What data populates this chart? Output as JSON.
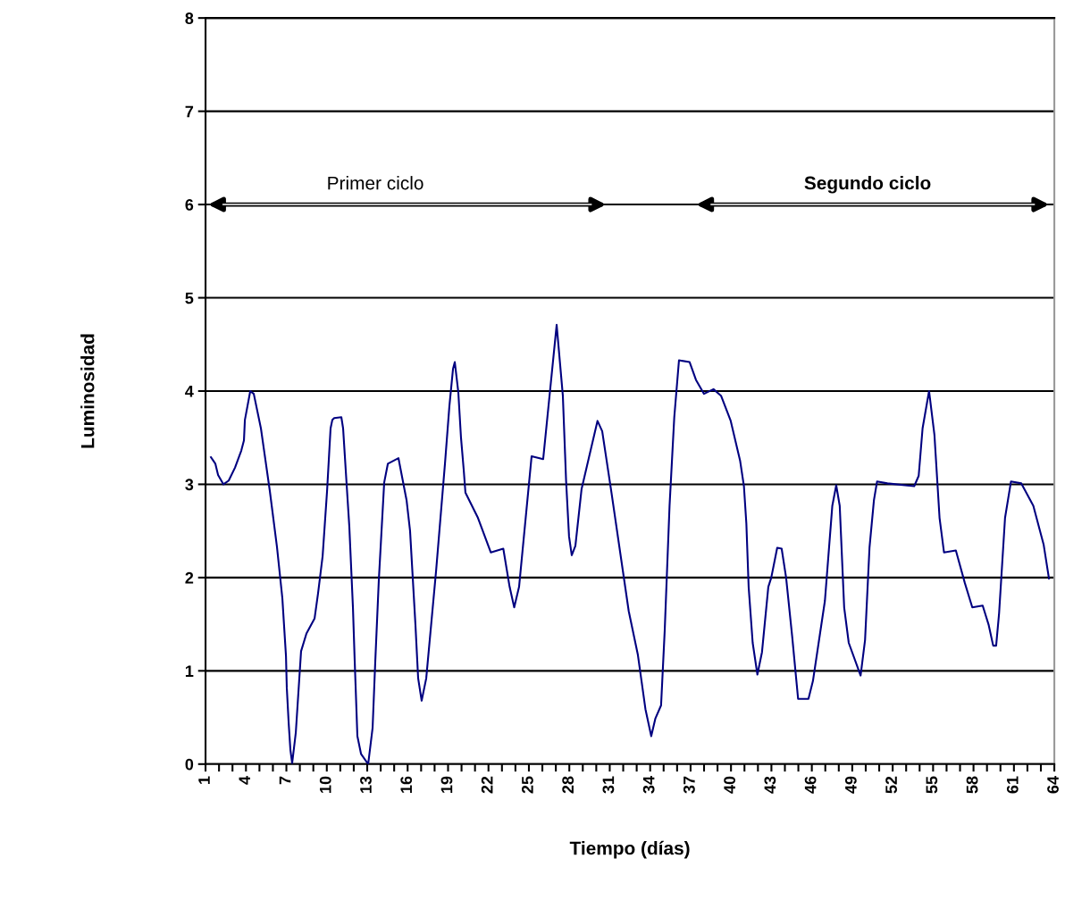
{
  "chart_data": {
    "type": "line",
    "xlabel": "Tiempo (días)",
    "ylabel": "Luminosidad",
    "xlim": [
      1,
      64
    ],
    "xticks": [
      {
        "value": 1,
        "label": "1"
      },
      {
        "value": 2,
        "label": null
      },
      {
        "value": 3,
        "label": null
      },
      {
        "value": 4,
        "label": "4"
      },
      {
        "value": 5,
        "label": null
      },
      {
        "value": 6,
        "label": null
      },
      {
        "value": 7,
        "label": "7"
      },
      {
        "value": 8,
        "label": null
      },
      {
        "value": 9,
        "label": null
      },
      {
        "value": 10,
        "label": "10"
      },
      {
        "value": 11,
        "label": null
      },
      {
        "value": 12,
        "label": null
      },
      {
        "value": 13,
        "label": "13"
      },
      {
        "value": 14,
        "label": null
      },
      {
        "value": 15,
        "label": null
      },
      {
        "value": 16,
        "label": "16"
      },
      {
        "value": 17,
        "label": null
      },
      {
        "value": 18,
        "label": null
      },
      {
        "value": 19,
        "label": "19"
      },
      {
        "value": 20,
        "label": null
      },
      {
        "value": 21,
        "label": null
      },
      {
        "value": 22,
        "label": "22"
      },
      {
        "value": 23,
        "label": null
      },
      {
        "value": 24,
        "label": null
      },
      {
        "value": 25,
        "label": "25"
      },
      {
        "value": 26,
        "label": null
      },
      {
        "value": 27,
        "label": null
      },
      {
        "value": 28,
        "label": "28"
      },
      {
        "value": 29,
        "label": null
      },
      {
        "value": 30,
        "label": null
      },
      {
        "value": 31,
        "label": "31"
      },
      {
        "value": 32,
        "label": null
      },
      {
        "value": 33,
        "label": null
      },
      {
        "value": 34,
        "label": "34"
      },
      {
        "value": 35,
        "label": null
      },
      {
        "value": 36,
        "label": null
      },
      {
        "value": 37,
        "label": "37"
      },
      {
        "value": 38,
        "label": null
      },
      {
        "value": 39,
        "label": null
      },
      {
        "value": 40,
        "label": "40"
      },
      {
        "value": 41,
        "label": null
      },
      {
        "value": 42,
        "label": null
      },
      {
        "value": 43,
        "label": "43"
      },
      {
        "value": 44,
        "label": null
      },
      {
        "value": 45,
        "label": null
      },
      {
        "value": 46,
        "label": "46"
      },
      {
        "value": 47,
        "label": null
      },
      {
        "value": 48,
        "label": null
      },
      {
        "value": 49,
        "label": "49"
      },
      {
        "value": 50,
        "label": null
      },
      {
        "value": 51,
        "label": null
      },
      {
        "value": 52,
        "label": "52"
      },
      {
        "value": 53,
        "label": null
      },
      {
        "value": 54,
        "label": null
      },
      {
        "value": 55,
        "label": "55"
      },
      {
        "value": 56,
        "label": null
      },
      {
        "value": 57,
        "label": null
      },
      {
        "value": 58,
        "label": "58"
      },
      {
        "value": 59,
        "label": null
      },
      {
        "value": 60,
        "label": null
      },
      {
        "value": 61,
        "label": "61"
      },
      {
        "value": 62,
        "label": null
      },
      {
        "value": 63,
        "label": null
      },
      {
        "value": 64,
        "label": "64"
      }
    ],
    "ylim": [
      0,
      8
    ],
    "yticks": [
      0,
      1,
      2,
      3,
      4,
      5,
      6,
      7,
      8
    ],
    "grid": "y",
    "marker": "none",
    "line_style": "solid",
    "series": [
      {
        "color": "#000080",
        "x": [
          1.4,
          1.73,
          1.93,
          2.33,
          2.72,
          3.19,
          3.65,
          3.85,
          3.92,
          4.32,
          4.58,
          5.11,
          5.77,
          6.3,
          6.7,
          6.97,
          7.03,
          7.17,
          7.3,
          7.43,
          7.7,
          8.09,
          8.49,
          9.09,
          9.35,
          9.69,
          10.02,
          10.28,
          10.41,
          10.55,
          11.08,
          11.21,
          11.48,
          11.67,
          11.94,
          12.07,
          12.27,
          12.54,
          13.07,
          13.4,
          13.6,
          13.86,
          14.26,
          14.53,
          15.32,
          15.92,
          16.18,
          16.58,
          16.78,
          17.04,
          17.38,
          18.11,
          18.77,
          19.1,
          19.37,
          19.5,
          19.76,
          19.96,
          20.16,
          20.29,
          21.22,
          22.17,
          23.1,
          23.57,
          23.91,
          24.27,
          25.2,
          26.06,
          27.06,
          27.52,
          27.76,
          27.98,
          28.18,
          28.45,
          28.91,
          30.09,
          30.44,
          31.13,
          32.41,
          33.09,
          33.65,
          34.08,
          34.39,
          34.81,
          35.08,
          35.44,
          35.79,
          36.14,
          36.93,
          37.4,
          37.99,
          38.7,
          39.26,
          39.98,
          40.68,
          40.96,
          41.14,
          41.31,
          41.61,
          41.96,
          42.3,
          42.77,
          42.99,
          43.43,
          43.76,
          44.09,
          44.54,
          44.98,
          45.75,
          46.08,
          46.97,
          47.52,
          47.81,
          48.07,
          48.4,
          48.74,
          49.62,
          49.95,
          50.28,
          50.61,
          50.84,
          51.61,
          53.6,
          53.93,
          54.22,
          54.7,
          55.1,
          55.48,
          55.81,
          56.69,
          57.36,
          57.91,
          58.68,
          59.13,
          59.46,
          59.68,
          59.9,
          60.34,
          60.78,
          61.55,
          62.44,
          63.21,
          63.6
        ],
        "values": [
          3.29,
          3.22,
          3.1,
          3.0,
          3.04,
          3.18,
          3.36,
          3.47,
          3.69,
          4.0,
          3.97,
          3.6,
          2.93,
          2.33,
          1.78,
          1.16,
          0.82,
          0.44,
          0.15,
          0.01,
          0.34,
          1.21,
          1.4,
          1.56,
          1.83,
          2.23,
          2.93,
          3.6,
          3.69,
          3.71,
          3.72,
          3.6,
          2.98,
          2.55,
          1.68,
          1.11,
          0.3,
          0.11,
          0.0,
          0.39,
          1.11,
          1.97,
          3.02,
          3.22,
          3.28,
          2.83,
          2.5,
          1.49,
          0.92,
          0.68,
          0.92,
          2.07,
          3.22,
          3.84,
          4.24,
          4.31,
          3.99,
          3.5,
          3.16,
          2.91,
          2.64,
          2.27,
          2.31,
          1.9,
          1.68,
          1.9,
          3.3,
          3.27,
          4.71,
          3.95,
          3.04,
          2.44,
          2.24,
          2.34,
          2.95,
          3.68,
          3.57,
          2.91,
          1.64,
          1.17,
          0.59,
          0.3,
          0.49,
          0.63,
          1.43,
          2.77,
          3.72,
          4.33,
          4.31,
          4.12,
          3.97,
          4.02,
          3.95,
          3.68,
          3.25,
          2.98,
          2.58,
          1.9,
          1.3,
          0.96,
          1.2,
          1.9,
          2.0,
          2.32,
          2.31,
          2.0,
          1.37,
          0.7,
          0.7,
          0.89,
          1.75,
          2.77,
          2.99,
          2.77,
          1.68,
          1.3,
          0.95,
          1.33,
          2.32,
          2.83,
          3.03,
          3.01,
          2.98,
          3.09,
          3.6,
          4.0,
          3.53,
          2.64,
          2.27,
          2.29,
          1.94,
          1.68,
          1.7,
          1.49,
          1.27,
          1.27,
          1.62,
          2.64,
          3.03,
          3.01,
          2.77,
          2.35,
          1.99
        ]
      }
    ],
    "annotations": [
      "Primer ciclo",
      "Segundo ciclo"
    ]
  }
}
